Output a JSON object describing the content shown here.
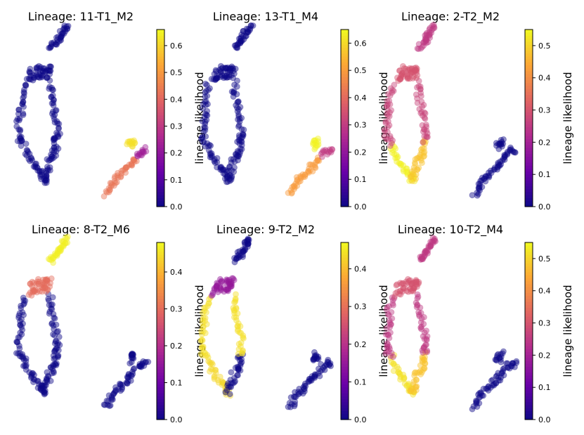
{
  "colormap": {
    "name": "plasma",
    "stops": [
      "#0d0887",
      "#6a00a8",
      "#b12a90",
      "#e16462",
      "#fca636",
      "#f0f921"
    ]
  },
  "chart_data": [
    {
      "type": "scatter",
      "title": "Lineage: 11-T1_M2",
      "colorbar_label": "lineage likelihood",
      "colorbar_ticks": [
        0.0,
        0.1,
        0.2,
        0.3,
        0.4,
        0.5,
        0.6
      ],
      "colorbar_tick_labels": [
        "0.0",
        "0.1",
        "0.2",
        "0.3",
        "0.4",
        "0.5",
        "0.6"
      ],
      "vmax": 0.66,
      "values": {
        "top": 0.0,
        "upper": 0.0,
        "left": 0.0,
        "right": 0.0,
        "bottom": 0.0,
        "low": 0.43,
        "mid": 0.43,
        "tip": 0.62,
        "hook": 0.23
      }
    },
    {
      "type": "scatter",
      "title": "Lineage: 13-T1_M4",
      "colorbar_label": "lineage likelihood",
      "colorbar_ticks": [
        0.0,
        0.1,
        0.2,
        0.3,
        0.4,
        0.5,
        0.6
      ],
      "colorbar_tick_labels": [
        "0.0",
        "0.1",
        "0.2",
        "0.3",
        "0.4",
        "0.5",
        "0.6"
      ],
      "vmax": 0.65,
      "values": {
        "top": 0.0,
        "upper": 0.0,
        "left": 0.0,
        "right": 0.0,
        "bottom": 0.0,
        "low": 0.5,
        "mid": 0.5,
        "tip": 0.64,
        "hook": 0.3
      }
    },
    {
      "type": "scatter",
      "title": "Lineage: 2-T2_M2",
      "colorbar_label": "lineage likelihood",
      "colorbar_ticks": [
        0.0,
        0.1,
        0.2,
        0.3,
        0.4,
        0.5
      ],
      "colorbar_tick_labels": [
        "0.0",
        "0.1",
        "0.2",
        "0.3",
        "0.4",
        "0.5"
      ],
      "vmax": 0.55,
      "values": {
        "top": 0.25,
        "upper": 0.3,
        "left": 0.27,
        "right": 0.48,
        "bottom": 0.54,
        "low": 0.0,
        "mid": 0.0,
        "tip": 0.0,
        "hook": 0.0
      }
    },
    {
      "type": "scatter",
      "title": "Lineage: 8-T2_M6",
      "colorbar_label": "lineage likelihood",
      "colorbar_ticks": [
        0.0,
        0.1,
        0.2,
        0.3,
        0.4
      ],
      "colorbar_tick_labels": [
        "0.0",
        "0.1",
        "0.2",
        "0.3",
        "0.4"
      ],
      "vmax": 0.48,
      "values": {
        "top": 0.47,
        "upper": 0.3,
        "left": 0.0,
        "right": 0.0,
        "bottom": 0.0,
        "low": 0.0,
        "mid": 0.0,
        "tip": 0.0,
        "hook": 0.0
      }
    },
    {
      "type": "scatter",
      "title": "Lineage: 9-T2_M2",
      "colorbar_label": "lineage likelihood",
      "colorbar_ticks": [
        0.0,
        0.1,
        0.2,
        0.3,
        0.4
      ],
      "colorbar_tick_labels": [
        "0.0",
        "0.1",
        "0.2",
        "0.3",
        "0.4"
      ],
      "vmax": 0.47,
      "values": {
        "top": 0.0,
        "upper": 0.15,
        "left": 0.44,
        "right": 0.0,
        "bottom": 0.43,
        "low": 0.0,
        "mid": 0.0,
        "tip": 0.0,
        "hook": 0.0
      }
    },
    {
      "type": "scatter",
      "title": "Lineage: 10-T2_M4",
      "colorbar_label": "lineage likelihood",
      "colorbar_ticks": [
        0.0,
        0.1,
        0.2,
        0.3,
        0.4,
        0.5
      ],
      "colorbar_tick_labels": [
        "0.0",
        "0.1",
        "0.2",
        "0.3",
        "0.4",
        "0.5"
      ],
      "vmax": 0.55,
      "values": {
        "top": 0.25,
        "upper": 0.3,
        "left": 0.25,
        "right": 0.48,
        "bottom": 0.52,
        "low": 0.0,
        "mid": 0.0,
        "tip": 0.0,
        "hook": 0.0
      }
    }
  ]
}
